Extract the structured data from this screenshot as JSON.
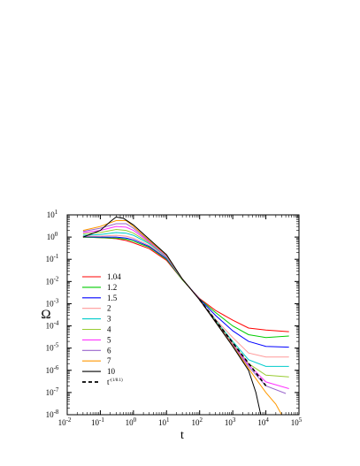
{
  "chart_data": {
    "type": "line",
    "xlabel": "t",
    "ylabel": "Ω",
    "xscale": "log",
    "yscale": "log",
    "xlim": [
      0.01,
      100000
    ],
    "ylim": [
      1e-08,
      10
    ],
    "grid": false,
    "legend_position": "left-middle",
    "x_ticks": [
      {
        "value": 0.01,
        "base": "10",
        "exp": "-2"
      },
      {
        "value": 0.1,
        "base": "10",
        "exp": "-1"
      },
      {
        "value": 1,
        "base": "10",
        "exp": "0"
      },
      {
        "value": 10,
        "base": "10",
        "exp": "1"
      },
      {
        "value": 100,
        "base": "10",
        "exp": "2"
      },
      {
        "value": 1000,
        "base": "10",
        "exp": "3"
      },
      {
        "value": 10000,
        "base": "10",
        "exp": "4"
      },
      {
        "value": 100000,
        "base": "10",
        "exp": "5"
      }
    ],
    "y_ticks": [
      {
        "value": 10,
        "base": "10",
        "exp": "1"
      },
      {
        "value": 1,
        "base": "10",
        "exp": "0"
      },
      {
        "value": 0.1,
        "base": "10",
        "exp": "-1"
      },
      {
        "value": 0.01,
        "base": "10",
        "exp": "-2"
      },
      {
        "value": 0.001,
        "base": "10",
        "exp": "-3"
      },
      {
        "value": 0.0001,
        "base": "10",
        "exp": "-4"
      },
      {
        "value": 1e-05,
        "base": "10",
        "exp": "-5"
      },
      {
        "value": 1e-06,
        "base": "10",
        "exp": "-6"
      },
      {
        "value": 1e-07,
        "base": "10",
        "exp": "-7"
      },
      {
        "value": 1e-08,
        "base": "10",
        "exp": "-8"
      }
    ],
    "series": [
      {
        "name": "1.04",
        "color": "#ff0000",
        "dashed": false,
        "x": [
          0.03,
          0.1,
          0.3,
          0.6,
          1,
          3,
          10,
          30,
          100,
          300,
          1000,
          3000,
          10000,
          50000
        ],
        "y": [
          1.0,
          0.95,
          0.85,
          0.7,
          0.55,
          0.3,
          0.09,
          0.012,
          0.0017,
          0.0005,
          0.00018,
          8e-05,
          6.5e-05,
          5.5e-05
        ]
      },
      {
        "name": "1.2",
        "color": "#00cc00",
        "dashed": false,
        "x": [
          0.03,
          0.1,
          0.3,
          0.6,
          1,
          3,
          10,
          30,
          100,
          300,
          1000,
          3000,
          10000,
          50000
        ],
        "y": [
          1.0,
          0.95,
          0.9,
          0.8,
          0.65,
          0.35,
          0.1,
          0.012,
          0.0016,
          0.0004,
          0.0001,
          4e-05,
          3e-05,
          3.5e-05
        ]
      },
      {
        "name": "1.5",
        "color": "#0000ff",
        "dashed": false,
        "x": [
          0.03,
          0.1,
          0.3,
          0.6,
          1,
          3,
          10,
          30,
          100,
          300,
          1000,
          3000,
          10000,
          50000
        ],
        "y": [
          1.05,
          1.0,
          1.0,
          0.9,
          0.75,
          0.38,
          0.11,
          0.013,
          0.0016,
          0.0003,
          6e-05,
          2e-05,
          1.2e-05,
          1.1e-05
        ]
      },
      {
        "name": "2",
        "color": "#ff9999",
        "dashed": false,
        "x": [
          0.03,
          0.1,
          0.3,
          0.6,
          1,
          3,
          10,
          30,
          100,
          300,
          1000,
          3000,
          10000,
          50000
        ],
        "y": [
          1.1,
          1.1,
          1.2,
          1.1,
          0.9,
          0.42,
          0.12,
          0.013,
          0.0015,
          0.0002,
          3e-05,
          6e-06,
          4e-06,
          4e-06
        ]
      },
      {
        "name": "3",
        "color": "#00cccc",
        "dashed": false,
        "x": [
          0.03,
          0.1,
          0.3,
          0.6,
          1,
          3,
          10,
          30,
          100,
          300,
          1000,
          3000,
          10000,
          50000
        ],
        "y": [
          1.2,
          1.3,
          1.6,
          1.5,
          1.2,
          0.5,
          0.13,
          0.013,
          0.0015,
          0.00018,
          2e-05,
          3e-06,
          1.5e-06,
          1.5e-06
        ]
      },
      {
        "name": "4",
        "color": "#99cc33",
        "dashed": false,
        "x": [
          0.03,
          0.1,
          0.3,
          0.6,
          1,
          3,
          10,
          30,
          100,
          300,
          1000,
          3000,
          10000,
          50000
        ],
        "y": [
          1.4,
          1.6,
          2.2,
          2.0,
          1.5,
          0.55,
          0.14,
          0.013,
          0.0015,
          0.00016,
          1.7e-05,
          2e-06,
          6e-07,
          5e-07
        ]
      },
      {
        "name": "5",
        "color": "#ff33ff",
        "dashed": false,
        "x": [
          0.03,
          0.1,
          0.3,
          0.6,
          1,
          3,
          10,
          30,
          100,
          300,
          1000,
          3000,
          10000,
          50000
        ],
        "y": [
          1.6,
          2.0,
          3.0,
          2.8,
          2.0,
          0.6,
          0.14,
          0.013,
          0.0015,
          0.00015,
          1.5e-05,
          1.8e-06,
          3e-07,
          1.5e-07
        ]
      },
      {
        "name": "6",
        "color": "#9966cc",
        "dashed": false,
        "x": [
          0.03,
          0.1,
          0.3,
          0.6,
          1,
          3,
          10,
          30,
          100,
          300,
          1000,
          3000,
          10000,
          40000
        ],
        "y": [
          1.8,
          2.5,
          4.0,
          4.0,
          2.5,
          0.65,
          0.15,
          0.013,
          0.0015,
          0.00015,
          1.4e-05,
          1.5e-06,
          2e-07,
          9e-08
        ]
      },
      {
        "name": "7",
        "color": "#ff9900",
        "dashed": false,
        "x": [
          0.03,
          0.1,
          0.3,
          0.6,
          1,
          3,
          10,
          30,
          100,
          300,
          1000,
          3000,
          10000,
          20000,
          30000
        ],
        "y": [
          2.0,
          3.0,
          5.5,
          5.5,
          3.0,
          0.7,
          0.15,
          0.013,
          0.0015,
          0.00015,
          1.3e-05,
          1.2e-06,
          1e-07,
          3e-08,
          1e-08
        ]
      },
      {
        "name": "10",
        "color": "#000000",
        "dashed": false,
        "x": [
          0.03,
          0.1,
          0.2,
          0.3,
          0.5,
          1,
          3,
          10,
          30,
          100,
          300,
          1000,
          3000,
          5000,
          7000
        ],
        "y": [
          1.0,
          2.0,
          5.0,
          8.0,
          7.0,
          3.5,
          0.8,
          0.16,
          0.013,
          0.0015,
          0.00015,
          1.2e-05,
          1e-06,
          1e-07,
          1e-08
        ]
      },
      {
        "name": "t^{-(1/8.1)}",
        "label_base": "t",
        "label_exp": "-(1/8.1)",
        "color": "#000000",
        "dashed": true,
        "x": [
          100,
          10000
        ],
        "y": [
          0.0015,
          2e-07
        ]
      }
    ]
  }
}
